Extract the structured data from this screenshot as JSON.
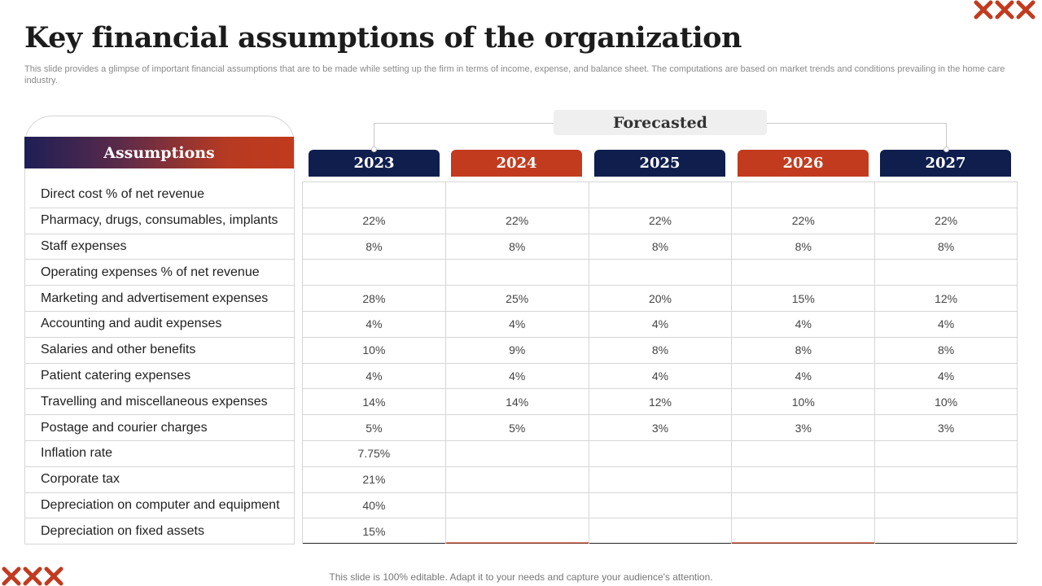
{
  "title": "Key financial assumptions of the organization",
  "subtitle": "This slide provides a glimpse of important financial assumptions that are to be made while setting up the firm in terms of income, expense, and balance sheet. The computations are based on market trends and conditions prevailing in the home care industry.",
  "assumptions_header": "Assumptions",
  "forecast_label": "Forecasted",
  "years": [
    {
      "label": "2023",
      "color": "#0f1e4d"
    },
    {
      "label": "2024",
      "color": "#c23b1f"
    },
    {
      "label": "2025",
      "color": "#0f1e4d"
    },
    {
      "label": "2026",
      "color": "#c23b1f"
    },
    {
      "label": "2027",
      "color": "#0f1e4d"
    }
  ],
  "rows": [
    {
      "label": "Direct cost % of net revenue",
      "values": [
        "",
        "",
        "",
        "",
        ""
      ]
    },
    {
      "label": "Pharmacy, drugs, consumables, implants",
      "values": [
        "22%",
        "22%",
        "22%",
        "22%",
        "22%"
      ]
    },
    {
      "label": "Staff expenses",
      "values": [
        "8%",
        "8%",
        "8%",
        "8%",
        "8%"
      ]
    },
    {
      "label": "Operating expenses % of net revenue",
      "values": [
        "",
        "",
        "",
        "",
        ""
      ]
    },
    {
      "label": "Marketing and advertisement expenses",
      "values": [
        "28%",
        "25%",
        "20%",
        "15%",
        "12%"
      ]
    },
    {
      "label": "Accounting and audit expenses",
      "values": [
        "4%",
        "4%",
        "4%",
        "4%",
        "4%"
      ]
    },
    {
      "label": "Salaries and other benefits",
      "values": [
        "10%",
        "9%",
        "8%",
        "8%",
        "8%"
      ]
    },
    {
      "label": "Patient catering expenses",
      "values": [
        "4%",
        "4%",
        "4%",
        "4%",
        "4%"
      ]
    },
    {
      "label": "Travelling and miscellaneous expenses",
      "values": [
        "14%",
        "14%",
        "12%",
        "10%",
        "10%"
      ]
    },
    {
      "label": "Postage and courier charges",
      "values": [
        "5%",
        "5%",
        "3%",
        "3%",
        "3%"
      ]
    },
    {
      "label": "Inflation rate",
      "values": [
        "7.75%",
        "",
        "",
        "",
        ""
      ]
    },
    {
      "label": "Corporate tax",
      "values": [
        "21%",
        "",
        "",
        "",
        ""
      ]
    },
    {
      "label": "Depreciation on computer and equipment",
      "values": [
        "40%",
        "",
        "",
        "",
        ""
      ]
    },
    {
      "label": "Depreciation on fixed assets",
      "values": [
        "15%",
        "",
        "",
        "",
        ""
      ]
    }
  ],
  "footer": "This slide is 100% editable. Adapt it to your needs and capture your audience's attention.",
  "accent_color": "#c23b1f",
  "navy_color": "#0f1e4d"
}
